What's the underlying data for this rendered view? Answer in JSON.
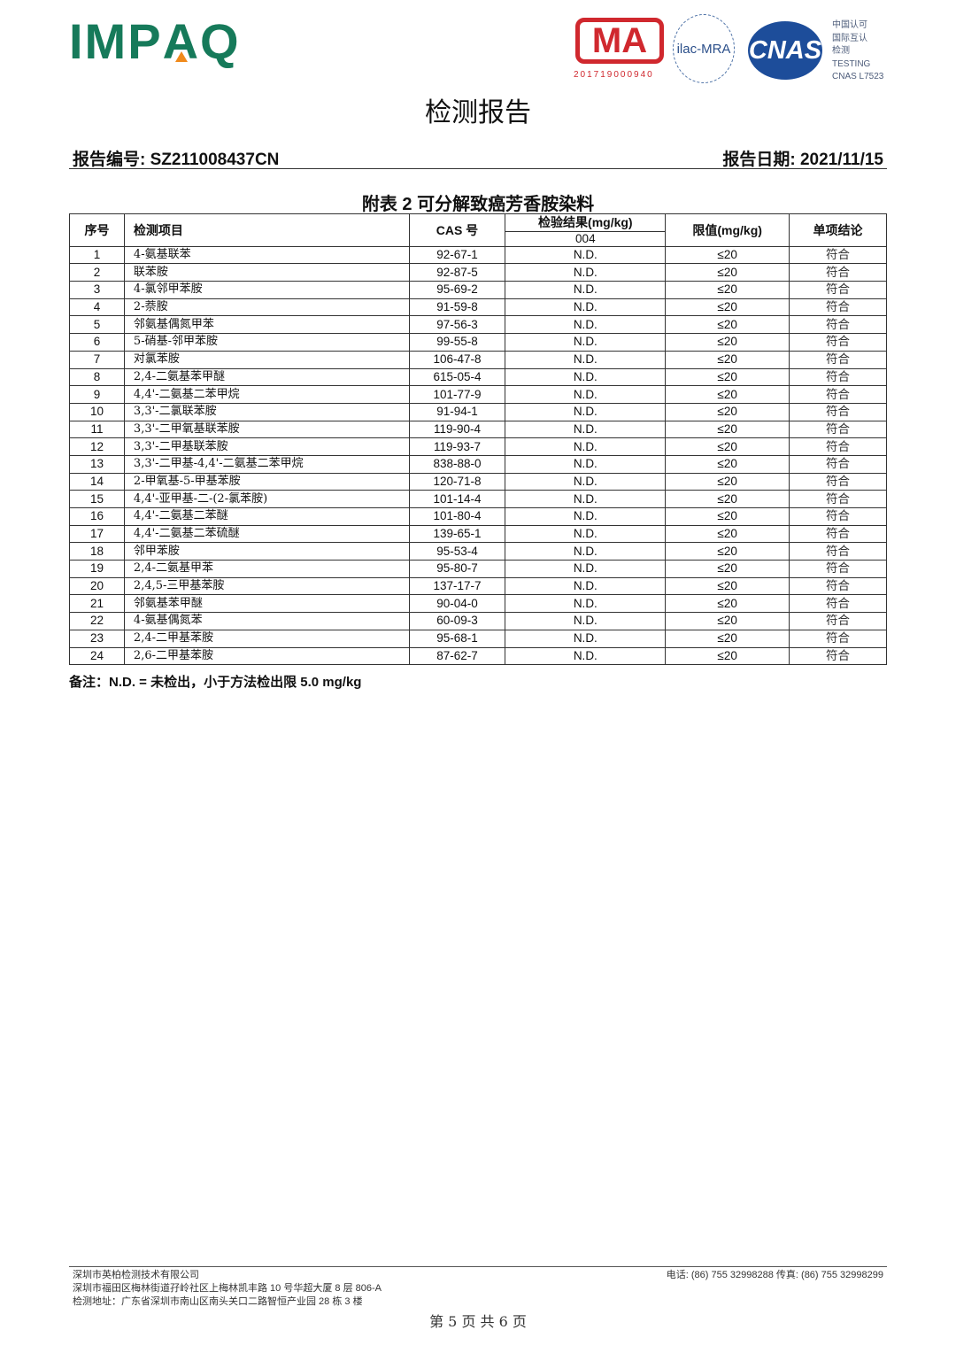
{
  "header": {
    "logo": "IMPAQ",
    "cma_code": "201719000940",
    "ilac": "ilac-MRA",
    "cnas": "CNAS",
    "cnas_lines": [
      "中国认可",
      "国际互认",
      "检测",
      "TESTING",
      "CNAS L7523"
    ]
  },
  "title": "检测报告",
  "report_no": "报告编号: SZ211008437CN",
  "report_date": "报告日期: 2021/11/15",
  "table_title": "附表 2  可分解致癌芳香胺染料",
  "columns": {
    "no": "序号",
    "item": "检测项目",
    "cas": "CAS 号",
    "result": "检验结果(mg/kg)",
    "sample": "004",
    "limit": "限值(mg/kg)",
    "conclusion": "单项结论"
  },
  "rows": [
    {
      "no": "1",
      "item": "4-氨基联苯",
      "cas": "92-67-1",
      "result": "N.D.",
      "limit": "≤20",
      "conclusion": "符合"
    },
    {
      "no": "2",
      "item": "联苯胺",
      "cas": "92-87-5",
      "result": "N.D.",
      "limit": "≤20",
      "conclusion": "符合"
    },
    {
      "no": "3",
      "item": "4-氯邻甲苯胺",
      "cas": "95-69-2",
      "result": "N.D.",
      "limit": "≤20",
      "conclusion": "符合"
    },
    {
      "no": "4",
      "item": "2-萘胺",
      "cas": "91-59-8",
      "result": "N.D.",
      "limit": "≤20",
      "conclusion": "符合"
    },
    {
      "no": "5",
      "item": "邻氨基偶氮甲苯",
      "cas": "97-56-3",
      "result": "N.D.",
      "limit": "≤20",
      "conclusion": "符合"
    },
    {
      "no": "6",
      "item": "5-硝基-邻甲苯胺",
      "cas": "99-55-8",
      "result": "N.D.",
      "limit": "≤20",
      "conclusion": "符合"
    },
    {
      "no": "7",
      "item": "对氯苯胺",
      "cas": "106-47-8",
      "result": "N.D.",
      "limit": "≤20",
      "conclusion": "符合"
    },
    {
      "no": "8",
      "item": "2,4-二氨基苯甲醚",
      "cas": "615-05-4",
      "result": "N.D.",
      "limit": "≤20",
      "conclusion": "符合"
    },
    {
      "no": "9",
      "item": "4,4'-二氨基二苯甲烷",
      "cas": "101-77-9",
      "result": "N.D.",
      "limit": "≤20",
      "conclusion": "符合"
    },
    {
      "no": "10",
      "item": "3,3'-二氯联苯胺",
      "cas": "91-94-1",
      "result": "N.D.",
      "limit": "≤20",
      "conclusion": "符合"
    },
    {
      "no": "11",
      "item": "3,3'-二甲氧基联苯胺",
      "cas": "119-90-4",
      "result": "N.D.",
      "limit": "≤20",
      "conclusion": "符合"
    },
    {
      "no": "12",
      "item": "3,3'-二甲基联苯胺",
      "cas": "119-93-7",
      "result": "N.D.",
      "limit": "≤20",
      "conclusion": "符合"
    },
    {
      "no": "13",
      "item": "3,3'-二甲基-4,4'-二氨基二苯甲烷",
      "cas": "838-88-0",
      "result": "N.D.",
      "limit": "≤20",
      "conclusion": "符合"
    },
    {
      "no": "14",
      "item": "2-甲氧基-5-甲基苯胺",
      "cas": "120-71-8",
      "result": "N.D.",
      "limit": "≤20",
      "conclusion": "符合"
    },
    {
      "no": "15",
      "item": "4,4'-亚甲基-二-(2-氯苯胺)",
      "cas": "101-14-4",
      "result": "N.D.",
      "limit": "≤20",
      "conclusion": "符合"
    },
    {
      "no": "16",
      "item": "4,4'-二氨基二苯醚",
      "cas": "101-80-4",
      "result": "N.D.",
      "limit": "≤20",
      "conclusion": "符合"
    },
    {
      "no": "17",
      "item": "4,4'-二氨基二苯硫醚",
      "cas": "139-65-1",
      "result": "N.D.",
      "limit": "≤20",
      "conclusion": "符合"
    },
    {
      "no": "18",
      "item": "邻甲苯胺",
      "cas": "95-53-4",
      "result": "N.D.",
      "limit": "≤20",
      "conclusion": "符合"
    },
    {
      "no": "19",
      "item": "2,4-二氨基甲苯",
      "cas": "95-80-7",
      "result": "N.D.",
      "limit": "≤20",
      "conclusion": "符合"
    },
    {
      "no": "20",
      "item": "2,4,5-三甲基苯胺",
      "cas": "137-17-7",
      "result": "N.D.",
      "limit": "≤20",
      "conclusion": "符合"
    },
    {
      "no": "21",
      "item": "邻氨基苯甲醚",
      "cas": "90-04-0",
      "result": "N.D.",
      "limit": "≤20",
      "conclusion": "符合"
    },
    {
      "no": "22",
      "item": "4-氨基偶氮苯",
      "cas": "60-09-3",
      "result": "N.D.",
      "limit": "≤20",
      "conclusion": "符合"
    },
    {
      "no": "23",
      "item": "2,4-二甲基苯胺",
      "cas": "95-68-1",
      "result": "N.D.",
      "limit": "≤20",
      "conclusion": "符合"
    },
    {
      "no": "24",
      "item": "2,6-二甲基苯胺",
      "cas": "87-62-7",
      "result": "N.D.",
      "limit": "≤20",
      "conclusion": "符合"
    }
  ],
  "note": "备注：N.D. =  未检出，小于方法检出限  5.0 mg/kg",
  "footer": {
    "company": "深圳市英柏检测技术有限公司",
    "address": "深圳市福田区梅林街道孖岭社区上梅林凯丰路 10 号华超大厦 8 层 806-A",
    "lab": "检测地址：广东省深圳市南山区南头关口二路智恒产业园 28 栋 3 楼",
    "contact": "电话: (86) 755 32998288  传真: (86) 755 32998299",
    "page": "第 5 页 共 6 页"
  }
}
